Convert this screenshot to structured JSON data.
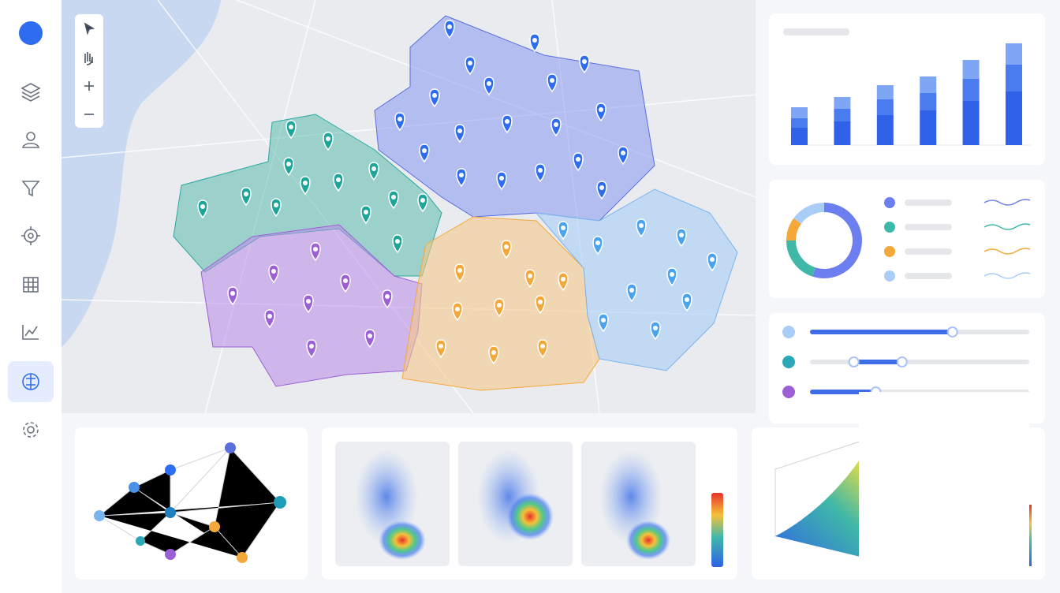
{
  "bar_chart": {
    "type": "bar",
    "stacked": true,
    "series": [
      {
        "color": "#2f62e8",
        "values": [
          22,
          30,
          38,
          44,
          56,
          68
        ]
      },
      {
        "color": "#4a7cf0",
        "values": [
          12,
          16,
          20,
          22,
          28,
          34
        ]
      },
      {
        "color": "#7ea6f5",
        "values": [
          14,
          15,
          18,
          21,
          24,
          27
        ]
      }
    ]
  },
  "donut": {
    "type": "pie",
    "values": [
      55,
      20,
      10,
      15
    ],
    "colors": [
      "#6d7ef0",
      "#3fb8a8",
      "#f5a83a",
      "#a9cdf7"
    ]
  },
  "sliders": [
    {
      "color": "#a9cdf7",
      "values": [
        65
      ]
    },
    {
      "color": "#2aa8b8",
      "values": [
        20,
        42
      ]
    },
    {
      "color": "#9b5fd6",
      "values": [
        30
      ]
    }
  ]
}
